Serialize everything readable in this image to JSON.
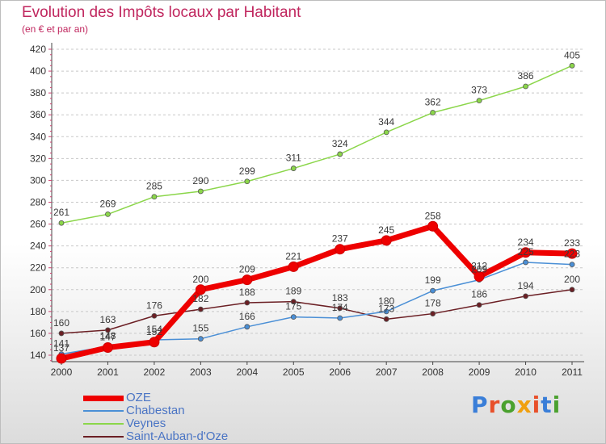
{
  "title": "Evolution des Impôts locaux par Habitant",
  "subtitle": "(en € et par an)",
  "logo": {
    "text": "Proxiti",
    "colors": [
      "#3a7ed8",
      "#e8502a",
      "#4aa12e",
      "#f0a010",
      "#e8502a",
      "#3a7ed8",
      "#4aa12e"
    ]
  },
  "chart_data": {
    "type": "line",
    "title": "Evolution des Impôts locaux par Habitant",
    "subtitle": "(en € et par an)",
    "xlabel": "",
    "ylabel": "",
    "ylim": [
      130,
      420
    ],
    "yticks": [
      140,
      160,
      180,
      200,
      220,
      240,
      260,
      280,
      300,
      320,
      340,
      360,
      380,
      400,
      420
    ],
    "grid": "horizontal dashed",
    "legend_position": "bottom-left",
    "categories": [
      "2000",
      "2001",
      "2002",
      "2003",
      "2004",
      "2005",
      "2006",
      "2007",
      "2008",
      "2009",
      "2010",
      "2011"
    ],
    "series": [
      {
        "name": "OZE",
        "color": "#ee0000",
        "values": [
          137,
          147,
          152,
          200,
          209,
          221,
          237,
          245,
          258,
          212,
          234,
          233
        ]
      },
      {
        "name": "Chabestan",
        "color": "#4a8fd6",
        "values": [
          141,
          148,
          154,
          155,
          166,
          175,
          174,
          180,
          199,
          209,
          225,
          223
        ]
      },
      {
        "name": "Veynes",
        "color": "#8bd64a",
        "values": [
          261,
          269,
          285,
          290,
          299,
          311,
          324,
          344,
          362,
          373,
          386,
          405
        ]
      },
      {
        "name": "Saint-Auban-d'Oze",
        "color": "#6b1f24",
        "values": [
          160,
          163,
          176,
          182,
          188,
          189,
          183,
          173,
          178,
          186,
          194,
          200
        ]
      }
    ]
  }
}
